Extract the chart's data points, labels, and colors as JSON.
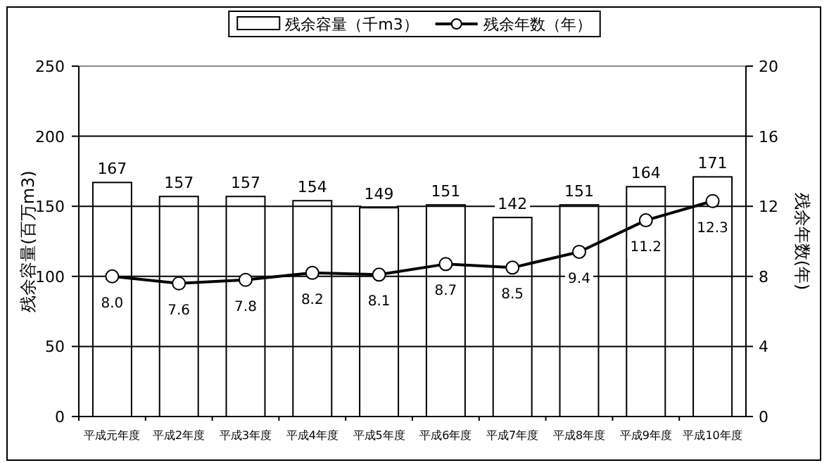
{
  "chart_data": {
    "type": "bar",
    "categories": [
      "平成元年度",
      "平成2年度",
      "平成3年度",
      "平成4年度",
      "平成5年度",
      "平成6年度",
      "平成7年度",
      "平成8年度",
      "平成9年度",
      "平成10年度"
    ],
    "ylabel": "残余容量(百万m3)",
    "y2label": "残余年数(年)",
    "ylim": [
      0,
      250
    ],
    "yticks": [
      0,
      50,
      100,
      150,
      200,
      250
    ],
    "y2lim": [
      0,
      20
    ],
    "y2ticks": [
      0,
      4,
      8,
      12,
      16,
      20
    ],
    "grid": "y",
    "legend": "top",
    "data_labels": true,
    "series": [
      {
        "name": "残余容量（千m3）",
        "color": "#ffffff",
        "values": [
          167,
          157,
          157,
          154,
          149,
          151,
          142,
          151,
          164,
          171
        ]
      },
      {
        "name": "残余年数（年）",
        "type": "line",
        "axis": "y2",
        "color": "#000000",
        "marker": "circle",
        "line_style": "solid",
        "values": [
          8.0,
          7.6,
          7.8,
          8.2,
          8.1,
          8.7,
          8.5,
          9.4,
          11.2,
          12.3
        ],
        "value_labels": [
          "8.0",
          "7.6",
          "7.8",
          "8.2",
          "8.1",
          "8.7",
          "8.5",
          "9.4",
          "11.2",
          "12.3"
        ]
      }
    ]
  }
}
